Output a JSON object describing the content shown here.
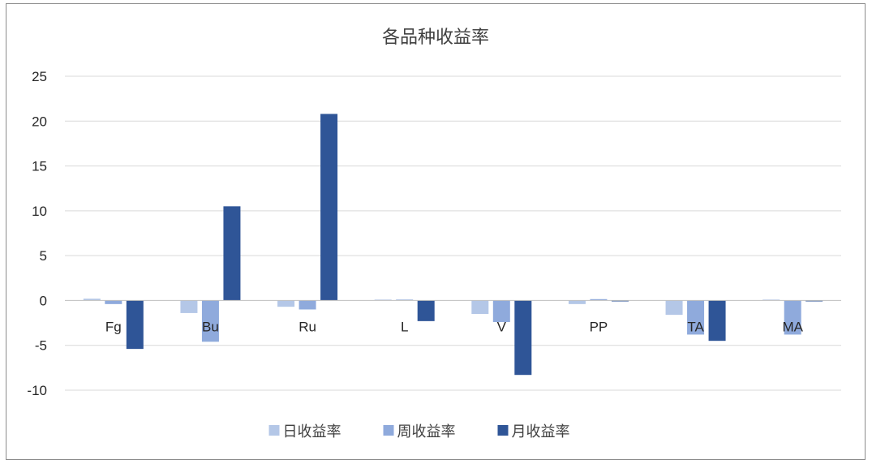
{
  "chart_data": {
    "type": "bar",
    "title": "各品种收益率",
    "categories": [
      "Fg",
      "Bu",
      "Ru",
      "L",
      "V",
      "PP",
      "TA",
      "MA"
    ],
    "series": [
      {
        "name": "日收益率",
        "color": "#b4c7e7",
        "values": [
          0.2,
          -1.4,
          -0.7,
          0.1,
          -1.5,
          -0.4,
          -1.6,
          0.1
        ]
      },
      {
        "name": "周收益率",
        "color": "#8faadc",
        "values": [
          -0.4,
          -4.6,
          -1.0,
          0.1,
          -2.4,
          0.15,
          -3.8,
          -3.8
        ]
      },
      {
        "name": "月收益率",
        "color": "#2f5597",
        "values": [
          -5.4,
          10.5,
          20.8,
          -2.3,
          -8.3,
          -0.1,
          -4.5,
          -0.1
        ]
      }
    ],
    "ylim": [
      -10,
      25
    ],
    "yticks": [
      25,
      20,
      15,
      10,
      5,
      0,
      -5,
      -10
    ],
    "grid": true,
    "legend_position": "bottom"
  }
}
